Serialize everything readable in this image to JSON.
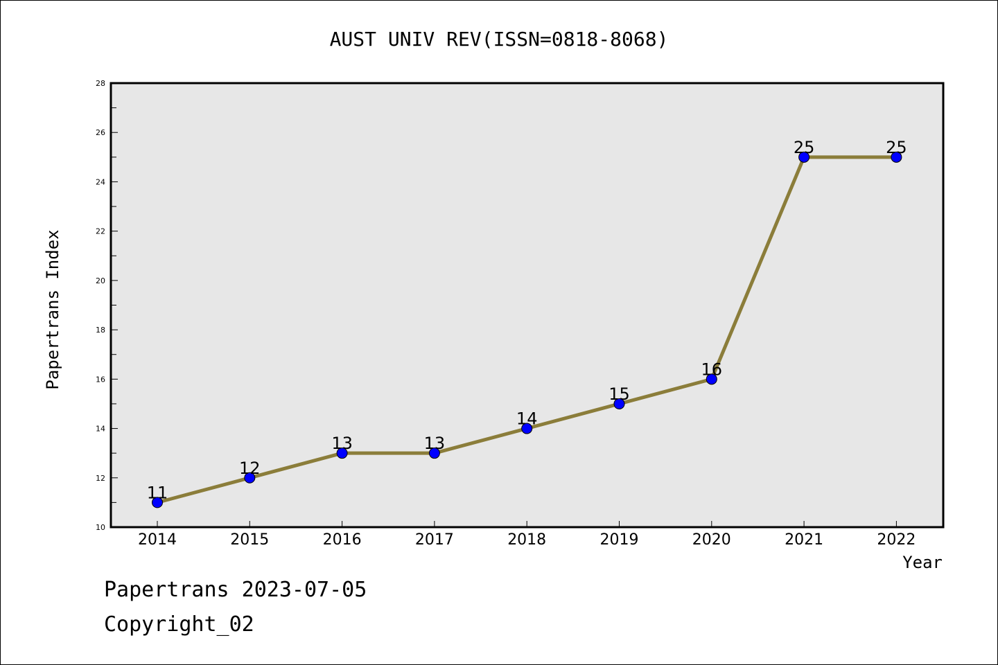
{
  "chart_data": {
    "type": "line",
    "title": "AUST UNIV REV(ISSN=0818-8068)",
    "xlabel": "Year",
    "ylabel": "Papertrans Index",
    "categories": [
      "2014",
      "2015",
      "2016",
      "2017",
      "2018",
      "2019",
      "2020",
      "2021",
      "2022"
    ],
    "series": [
      {
        "values": [
          11,
          12,
          13,
          13,
          14,
          15,
          16,
          25,
          25
        ]
      }
    ],
    "ylim": [
      10,
      28
    ],
    "yticks": [
      10,
      12,
      14,
      16,
      18,
      20,
      22,
      24,
      26,
      28
    ],
    "grid": false,
    "colors": {
      "line": "#8b7d3a",
      "marker": "#0000ff",
      "plot_background": "#e7e7e7"
    }
  },
  "footer": {
    "line1": "Papertrans 2023-07-05",
    "line2": "Copyright_02"
  }
}
